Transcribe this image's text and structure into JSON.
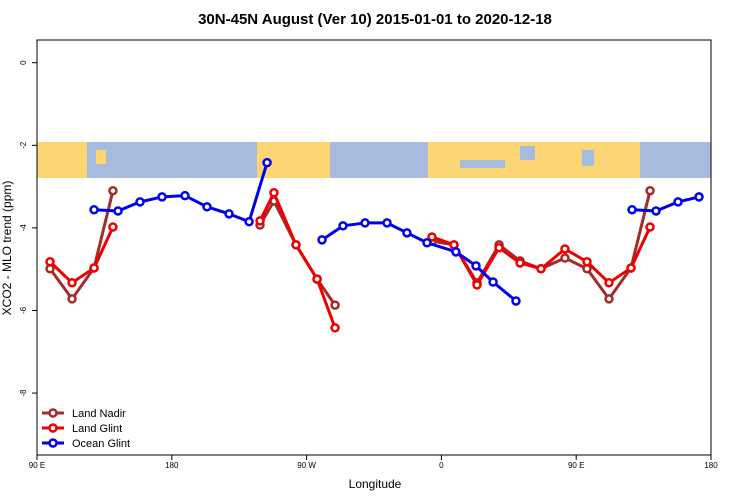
{
  "chart_data": {
    "type": "line",
    "title": "30N-45N August (Ver 10)   2015-01-01 to 2020-12-18",
    "x_label": "Longitude",
    "y_label": "XCO2 - MLO trend (ppm)",
    "xlim": [
      90,
      540
    ],
    "ylim": [
      -9.5,
      0.55
    ],
    "xticks": [
      {
        "value": 90,
        "label": "90 E"
      },
      180,
      {
        "value": 270,
        "label": "90 W"
      },
      {
        "value": 360,
        "label": "0"
      },
      {
        "value": 450,
        "label": "90 E"
      },
      {
        "value": 540,
        "label": "180"
      }
    ],
    "yticks": [
      0,
      -2,
      -4,
      -6,
      -8
    ],
    "legend": "bottom-left",
    "series": [
      {
        "name": "Land Nadir",
        "color": "#a52a2a",
        "x": [
          98.7,
          113.4,
          128.1,
          140.7,
          null,
          238.9,
          248.2,
          262.9,
          277.0,
          289.0,
          null,
          353.7,
          368.4,
          383.8,
          398.5,
          412.5,
          426.5,
          442.5,
          457.2,
          471.9,
          486.6,
          499.3
        ],
        "values": [
          -4.99,
          -5.72,
          -4.97,
          -3.1,
          null,
          -3.93,
          -3.35,
          -4.41,
          -5.24,
          -5.87,
          null,
          -4.32,
          -4.41,
          -5.33,
          -4.41,
          -4.8,
          -4.99,
          -4.73,
          -4.99,
          -5.72,
          -4.97,
          -3.1
        ]
      },
      {
        "name": "Land Glint",
        "color": "#ee0000",
        "x": [
          98.7,
          113.4,
          128.1,
          140.7,
          null,
          238.9,
          248.2,
          262.9,
          277.0,
          289.0,
          null,
          353.7,
          368.4,
          383.8,
          398.5,
          412.5,
          426.5,
          442.5,
          457.2,
          471.9,
          486.6,
          499.3
        ],
        "values": [
          -4.82,
          -5.33,
          -4.97,
          -3.98,
          null,
          -3.83,
          -3.15,
          -4.41,
          -5.24,
          -6.42,
          null,
          -4.22,
          -4.41,
          -5.38,
          -4.48,
          -4.85,
          -4.99,
          -4.51,
          -4.82,
          -5.33,
          -4.97,
          -3.98
        ]
      },
      {
        "name": "Ocean Glint",
        "color": "#0000ee",
        "x": [
          128.1,
          144.1,
          158.8,
          173.5,
          188.8,
          203.5,
          218.2,
          231.6,
          243.6,
          null,
          280.3,
          294.3,
          309.0,
          323.7,
          337.0,
          350.4,
          369.7,
          383.1,
          394.5,
          409.8,
          null,
          487.3,
          503.3,
          518.0,
          532.0
        ],
        "values": [
          -3.56,
          -3.59,
          -3.37,
          -3.25,
          -3.22,
          -3.49,
          -3.66,
          -3.85,
          -2.42,
          null,
          -4.29,
          -3.95,
          -3.88,
          -3.88,
          -4.12,
          -4.36,
          -4.58,
          -4.92,
          -5.31,
          -5.77,
          null,
          -3.56,
          -3.59,
          -3.37,
          -3.25
        ]
      }
    ]
  }
}
